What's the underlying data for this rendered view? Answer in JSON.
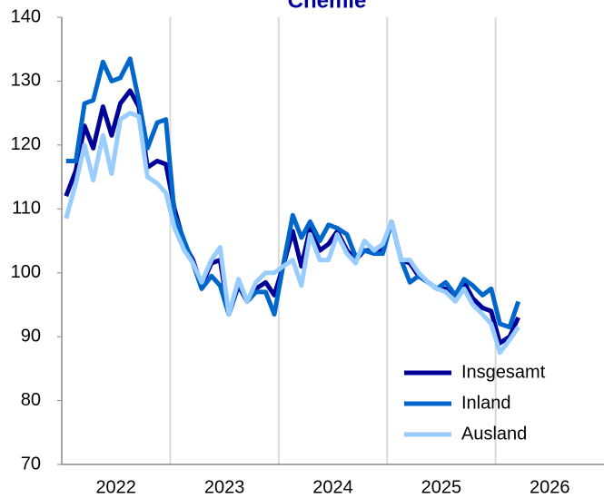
{
  "chart_data": {
    "type": "line",
    "title": "Chemie",
    "x": [
      2022.04,
      2022.13,
      2022.21,
      2022.29,
      2022.38,
      2022.46,
      2022.54,
      2022.63,
      2022.71,
      2022.79,
      2022.88,
      2022.96,
      2023.04,
      2023.13,
      2023.21,
      2023.29,
      2023.38,
      2023.46,
      2023.54,
      2023.63,
      2023.71,
      2023.79,
      2023.88,
      2023.96,
      2024.04,
      2024.13,
      2024.21,
      2024.29,
      2024.38,
      2024.46,
      2024.54,
      2024.63,
      2024.71,
      2024.79,
      2024.88,
      2024.96,
      2025.04,
      2025.13,
      2025.21,
      2025.29,
      2025.38,
      2025.46,
      2025.54,
      2025.63,
      2025.71,
      2025.79,
      2025.88,
      2025.96,
      2026.04,
      2026.13,
      2026.21
    ],
    "series": [
      {
        "name": "Insgesamt",
        "color": "#000099",
        "values": [
          112,
          116,
          123,
          119.5,
          126,
          121.5,
          126.5,
          128.5,
          126,
          116.5,
          117.5,
          117,
          110,
          104.5,
          102,
          98,
          101.5,
          102,
          93.5,
          98,
          95.5,
          97.5,
          98.5,
          96.5,
          101,
          106.5,
          101,
          107,
          103.5,
          104.5,
          106.5,
          103.5,
          102,
          103.5,
          103.5,
          103.5,
          108,
          102,
          101.5,
          99.5,
          98.5,
          97.5,
          97.5,
          96.5,
          98.5,
          96,
          94.5,
          94,
          89,
          90,
          93
        ]
      },
      {
        "name": "Inland",
        "color": "#0066cc",
        "values": [
          117.5,
          117.5,
          126.5,
          127,
          133,
          130,
          130.5,
          133.5,
          127,
          119.5,
          123.5,
          124,
          109,
          105,
          101.5,
          97.5,
          99.5,
          98,
          93.5,
          98.5,
          95.5,
          97,
          97,
          93.5,
          101,
          109,
          105.5,
          108,
          105,
          107.5,
          107,
          106,
          102.5,
          103.5,
          103,
          103,
          108,
          102,
          98.5,
          99.5,
          98.5,
          97.5,
          98.5,
          96.5,
          99,
          98,
          96.5,
          97.5,
          92,
          91.5,
          95.5
        ]
      },
      {
        "name": "Ausland",
        "color": "#99ccff",
        "values": [
          108.5,
          114,
          120,
          114.5,
          121.5,
          115.5,
          124,
          125,
          124.5,
          115,
          114,
          112.5,
          107,
          103.5,
          101.5,
          98.5,
          102,
          104,
          93.5,
          99,
          95.5,
          98.5,
          100,
          100,
          101,
          102,
          98,
          106,
          102,
          102,
          106,
          103,
          101.5,
          105,
          103.5,
          104.5,
          108,
          102,
          102,
          100,
          98.5,
          97.5,
          97,
          95.5,
          97.5,
          95,
          93.5,
          92,
          87.5,
          89.5,
          91.5
        ]
      }
    ],
    "xlim": [
      2022,
      2027
    ],
    "xticks": [
      {
        "value": 2022.5,
        "label": "2022"
      },
      {
        "value": 2023.5,
        "label": "2023"
      },
      {
        "value": 2024.5,
        "label": "2024"
      },
      {
        "value": 2025.5,
        "label": "2025"
      },
      {
        "value": 2026.5,
        "label": "2026"
      }
    ],
    "xgrid": [
      2023,
      2024,
      2025,
      2026
    ],
    "ylim": [
      70,
      140
    ],
    "yticks": [
      70,
      80,
      90,
      100,
      110,
      120,
      130,
      140
    ],
    "legend": "lower right"
  }
}
